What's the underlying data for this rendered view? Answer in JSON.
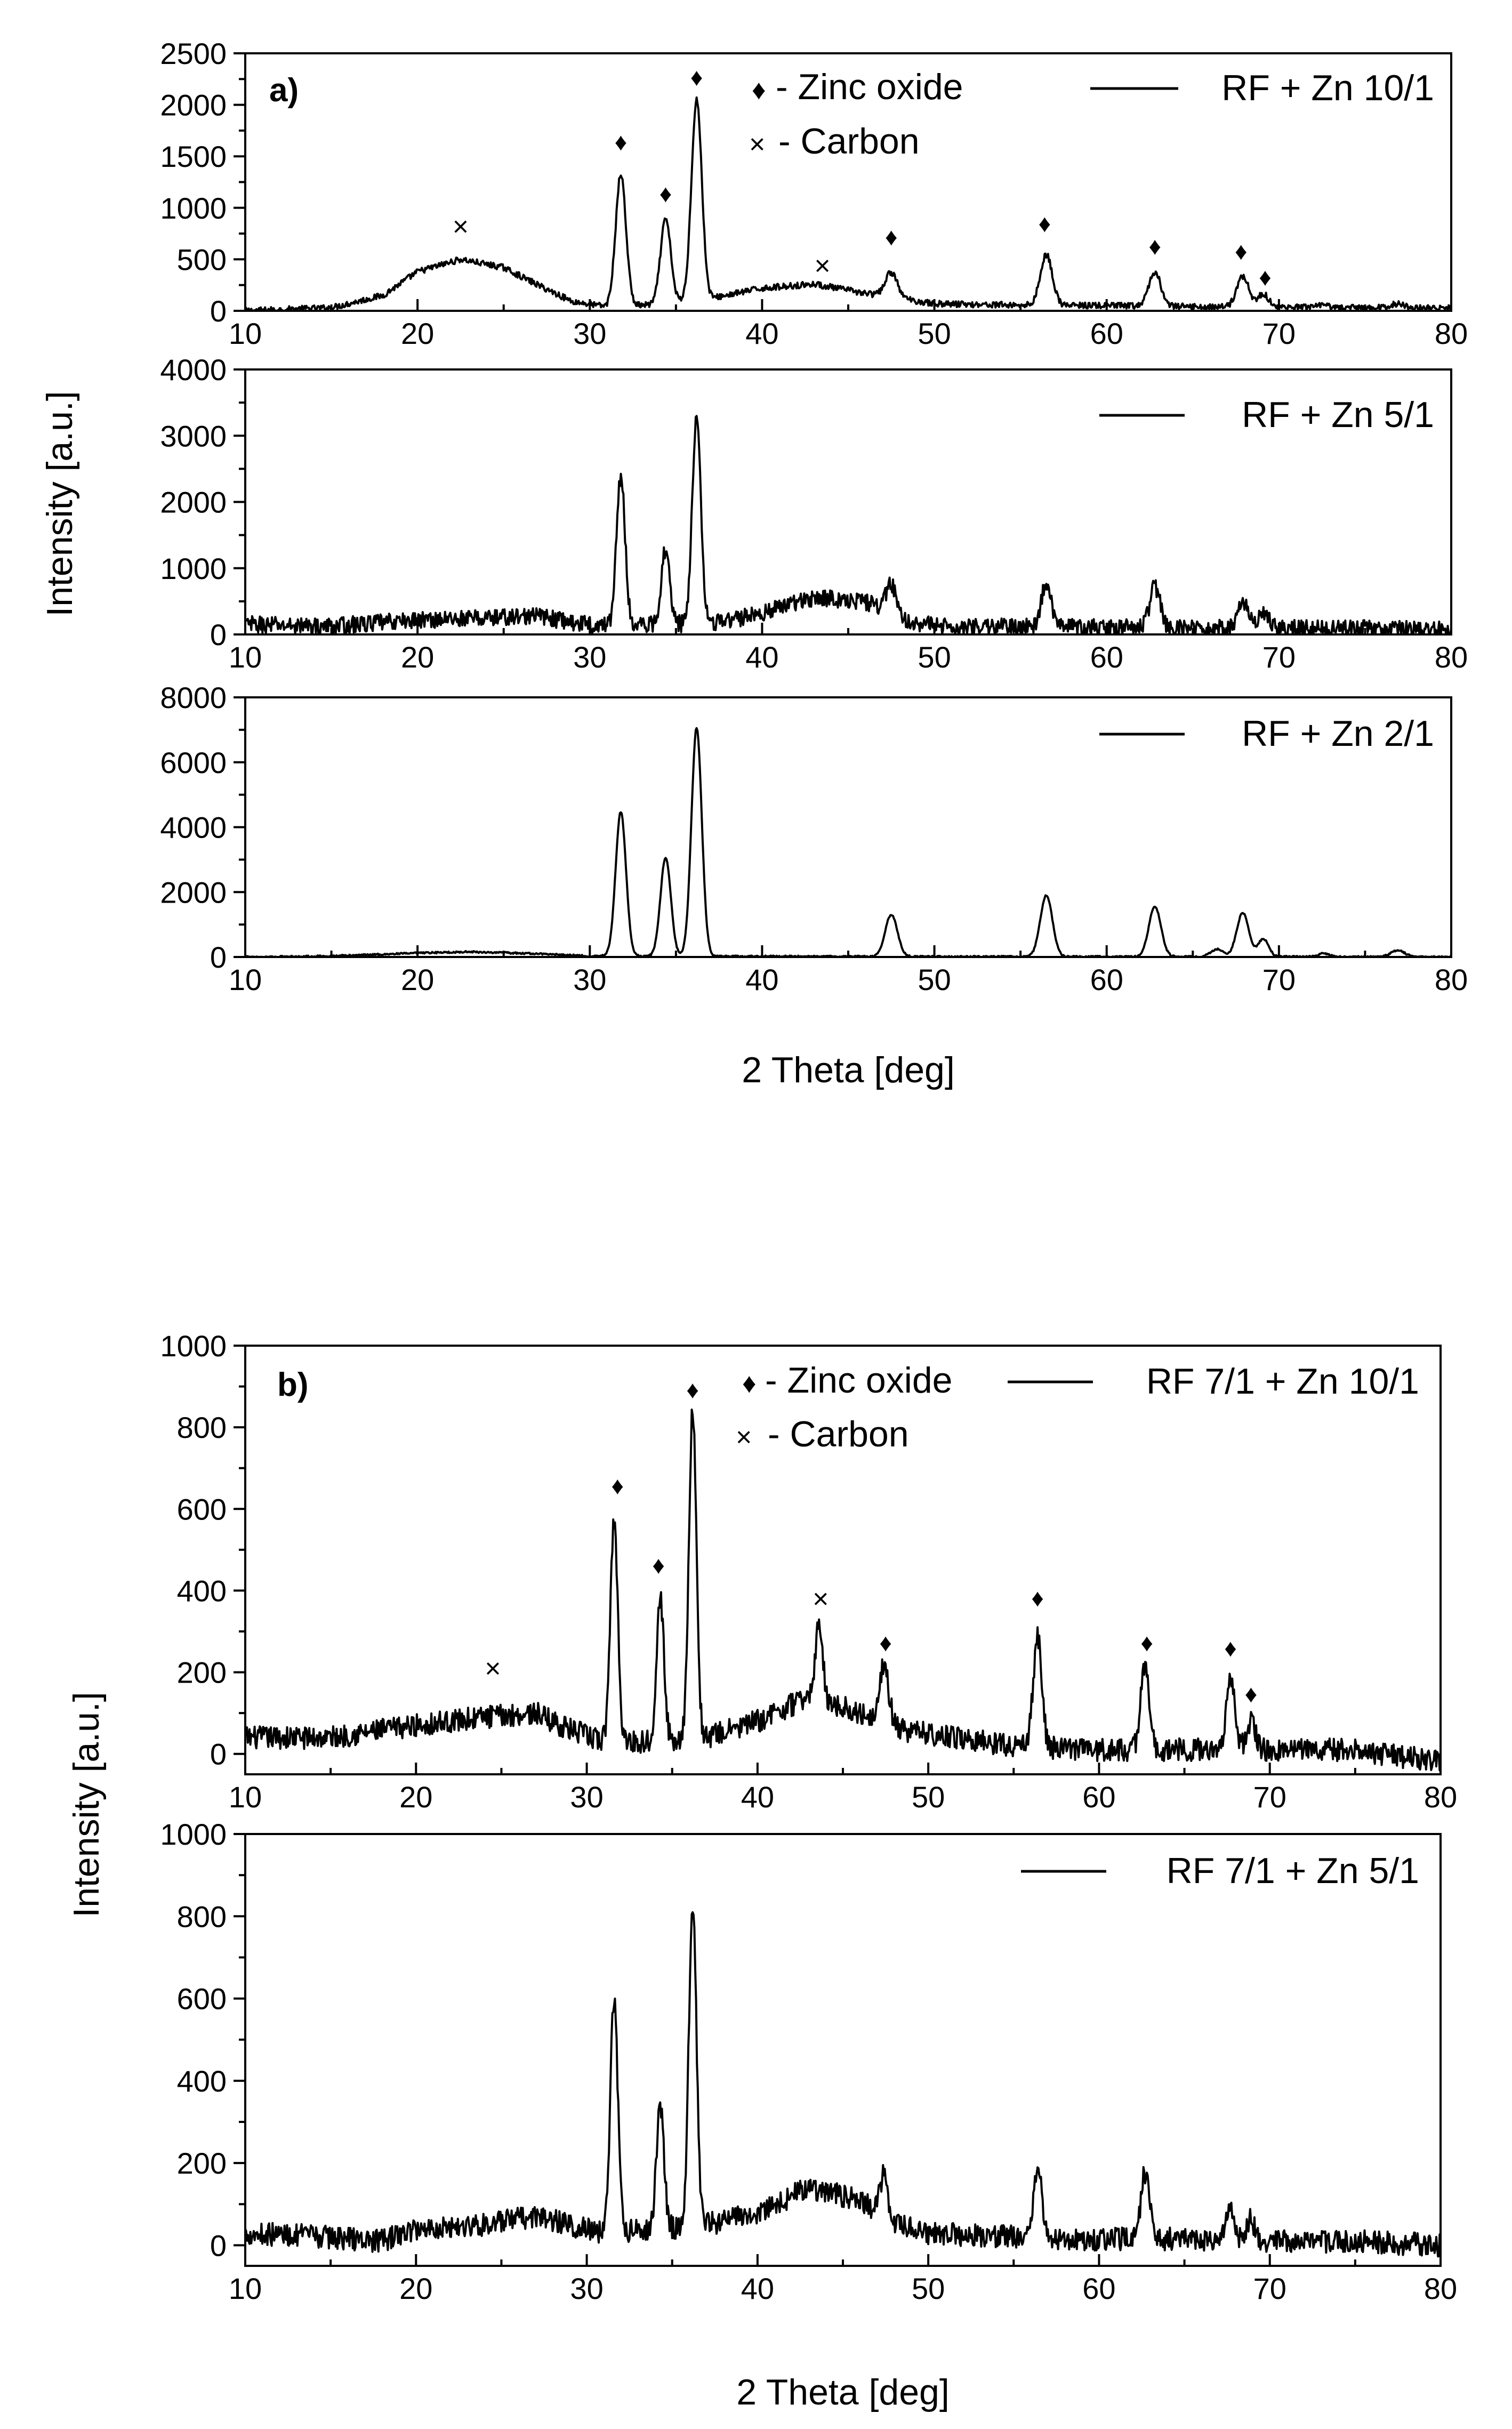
{
  "chart_data": [
    {
      "panel_label": "a)",
      "type": "line",
      "xlabel": "2 Theta [deg]",
      "ylabel": "Intensity [a.u.]",
      "xlim": [
        10,
        80
      ],
      "xticks": [
        10,
        20,
        30,
        40,
        50,
        60,
        70,
        80
      ],
      "legend_markers": [
        {
          "symbol": "♦",
          "text": "- Zinc oxide"
        },
        {
          "symbol": "×",
          "text": "- Carbon"
        }
      ],
      "subplots": [
        {
          "name": "RF + Zn 10/1",
          "ylim": [
            0,
            2500
          ],
          "yticks": [
            0,
            500,
            1000,
            1500,
            2000,
            2500
          ],
          "baseline": [
            [
              10,
              0
            ],
            [
              15,
              30
            ],
            [
              18,
              150
            ],
            [
              20,
              380
            ],
            [
              22.5,
              500
            ],
            [
              25,
              420
            ],
            [
              27,
              250
            ],
            [
              29,
              90
            ],
            [
              31,
              40
            ],
            [
              34,
              60
            ],
            [
              37,
              120
            ],
            [
              40,
              220
            ],
            [
              43,
              260
            ],
            [
              46,
              170
            ],
            [
              50,
              70
            ],
            [
              55,
              55
            ],
            [
              60,
              50
            ],
            [
              65,
              40
            ],
            [
              70,
              35
            ],
            [
              75,
              30
            ],
            [
              80,
              25
            ]
          ],
          "peaks": [
            [
              31.8,
              1280,
              0.3
            ],
            [
              34.4,
              820,
              0.3
            ],
            [
              36.2,
              1950,
              0.3
            ],
            [
              47.5,
              240,
              0.35
            ],
            [
              56.5,
              490,
              0.35
            ],
            [
              62.8,
              330,
              0.35
            ],
            [
              67.9,
              300,
              0.35
            ],
            [
              69.1,
              130,
              0.3
            ],
            [
              72.6,
              20,
              0.3
            ],
            [
              76.9,
              40,
              0.4
            ]
          ],
          "noise": 30,
          "markers": [
            {
              "symbol": "×",
              "x": 22.5,
              "y": 820
            },
            {
              "symbol": "♦",
              "x": 31.8,
              "y": 1650
            },
            {
              "symbol": "♦",
              "x": 34.4,
              "y": 1150
            },
            {
              "symbol": "♦",
              "x": 36.2,
              "y": 2280
            },
            {
              "symbol": "×",
              "x": 43.5,
              "y": 440
            },
            {
              "symbol": "♦",
              "x": 47.5,
              "y": 730
            },
            {
              "symbol": "♦",
              "x": 56.4,
              "y": 860
            },
            {
              "symbol": "♦",
              "x": 62.8,
              "y": 640
            },
            {
              "symbol": "♦",
              "x": 67.8,
              "y": 590
            },
            {
              "symbol": "♦",
              "x": 69.2,
              "y": 340
            }
          ]
        },
        {
          "name": "RF + Zn 5/1",
          "ylim": [
            0,
            4000
          ],
          "yticks": [
            0,
            1000,
            2000,
            3000,
            4000
          ],
          "baseline": [
            [
              10,
              150
            ],
            [
              15,
              120
            ],
            [
              20,
              220
            ],
            [
              25,
              260
            ],
            [
              27,
              280
            ],
            [
              29,
              180
            ],
            [
              31,
              130
            ],
            [
              35,
              150
            ],
            [
              38,
              200
            ],
            [
              40,
              330
            ],
            [
              43,
              560
            ],
            [
              46,
              500
            ],
            [
              48,
              250
            ],
            [
              50,
              120
            ],
            [
              55,
              110
            ],
            [
              60,
              100
            ],
            [
              65,
              95
            ],
            [
              70,
              90
            ],
            [
              75,
              90
            ],
            [
              80,
              70
            ]
          ],
          "peaks": [
            [
              31.8,
              2250,
              0.25
            ],
            [
              34.4,
              1150,
              0.25
            ],
            [
              36.2,
              3150,
              0.25
            ],
            [
              47.5,
              450,
              0.3
            ],
            [
              56.5,
              650,
              0.3
            ],
            [
              62.8,
              620,
              0.3
            ],
            [
              67.9,
              400,
              0.3
            ],
            [
              69.1,
              250,
              0.3
            ]
          ],
          "noise": 130,
          "markers": []
        },
        {
          "name": "RF + Zn 2/1",
          "ylim": [
            0,
            8000
          ],
          "yticks": [
            0,
            2000,
            4000,
            6000,
            8000
          ],
          "baseline": [
            [
              10,
              0
            ],
            [
              15,
              30
            ],
            [
              20,
              120
            ],
            [
              23,
              160
            ],
            [
              27,
              100
            ],
            [
              30,
              30
            ],
            [
              40,
              20
            ],
            [
              50,
              10
            ],
            [
              60,
              10
            ],
            [
              70,
              10
            ],
            [
              80,
              0
            ]
          ],
          "peaks": [
            [
              31.8,
              4450,
              0.3
            ],
            [
              34.4,
              3050,
              0.3
            ],
            [
              36.2,
              7050,
              0.3
            ],
            [
              47.5,
              1300,
              0.35
            ],
            [
              56.5,
              1900,
              0.35
            ],
            [
              62.8,
              1550,
              0.35
            ],
            [
              66.4,
              230,
              0.35
            ],
            [
              67.9,
              1350,
              0.35
            ],
            [
              69.1,
              550,
              0.3
            ],
            [
              72.6,
              100,
              0.3
            ],
            [
              76.9,
              200,
              0.4
            ]
          ],
          "noise": 25,
          "markers": []
        }
      ]
    },
    {
      "panel_label": "b)",
      "type": "line",
      "xlabel": "2 Theta [deg]",
      "ylabel": "Intensity [a.u.]",
      "xlim": [
        10,
        80
      ],
      "xticks": [
        10,
        20,
        30,
        40,
        50,
        60,
        70,
        80
      ],
      "legend_markers": [
        {
          "symbol": "♦",
          "text": "- Zinc oxide"
        },
        {
          "symbol": "×",
          "text": "- Carbon"
        }
      ],
      "subplots": [
        {
          "name": "RF 7/1 + Zn 10/1",
          "ylim": [
            -50,
            1000
          ],
          "yticks": [
            0,
            200,
            400,
            600,
            800,
            1000
          ],
          "baseline": [
            [
              10,
              40
            ],
            [
              15,
              40
            ],
            [
              20,
              70
            ],
            [
              24,
              90
            ],
            [
              27,
              100
            ],
            [
              29,
              60
            ],
            [
              31,
              30
            ],
            [
              34,
              30
            ],
            [
              37,
              40
            ],
            [
              40,
              80
            ],
            [
              43,
              140
            ],
            [
              46,
              100
            ],
            [
              48,
              60
            ],
            [
              50,
              50
            ],
            [
              55,
              20
            ],
            [
              60,
              10
            ],
            [
              65,
              10
            ],
            [
              70,
              10
            ],
            [
              75,
              10
            ],
            [
              80,
              -20
            ]
          ],
          "peaks": [
            [
              31.6,
              540,
              0.22
            ],
            [
              34.3,
              350,
              0.22
            ],
            [
              36.2,
              800,
              0.22
            ],
            [
              43.6,
              180,
              0.22
            ],
            [
              47.4,
              140,
              0.3
            ],
            [
              56.4,
              270,
              0.25
            ],
            [
              62.7,
              210,
              0.25
            ],
            [
              67.7,
              180,
              0.25
            ],
            [
              68.9,
              70,
              0.25
            ]
          ],
          "noise": 28,
          "markers": [
            {
              "symbol": "×",
              "x": 24.5,
              "y": 210
            },
            {
              "symbol": "♦",
              "x": 31.8,
              "y": 660
            },
            {
              "symbol": "♦",
              "x": 34.2,
              "y": 465
            },
            {
              "symbol": "♦",
              "x": 36.2,
              "y": 895
            },
            {
              "symbol": "×",
              "x": 43.7,
              "y": 380
            },
            {
              "symbol": "♦",
              "x": 47.5,
              "y": 275
            },
            {
              "symbol": "♦",
              "x": 56.4,
              "y": 385
            },
            {
              "symbol": "♦",
              "x": 62.8,
              "y": 275
            },
            {
              "symbol": "♦",
              "x": 67.7,
              "y": 262
            },
            {
              "symbol": "♦",
              "x": 68.9,
              "y": 150
            }
          ]
        },
        {
          "name": "RF 7/1 + Zn 5/1",
          "ylim": [
            -50,
            1000
          ],
          "yticks": [
            0,
            200,
            400,
            600,
            800,
            1000
          ],
          "baseline": [
            [
              10,
              30
            ],
            [
              15,
              20
            ],
            [
              18,
              10
            ],
            [
              20,
              40
            ],
            [
              24,
              50
            ],
            [
              27,
              70
            ],
            [
              29,
              50
            ],
            [
              31,
              30
            ],
            [
              34,
              40
            ],
            [
              37,
              50
            ],
            [
              40,
              80
            ],
            [
              43,
              140
            ],
            [
              46,
              110
            ],
            [
              48,
              50
            ],
            [
              50,
              30
            ],
            [
              55,
              20
            ],
            [
              60,
              15
            ],
            [
              65,
              15
            ],
            [
              70,
              10
            ],
            [
              75,
              10
            ],
            [
              80,
              0
            ]
          ],
          "peaks": [
            [
              31.6,
              560,
              0.22
            ],
            [
              34.3,
              300,
              0.22
            ],
            [
              36.2,
              790,
              0.22
            ],
            [
              47.4,
              100,
              0.25
            ],
            [
              56.4,
              170,
              0.25
            ],
            [
              62.7,
              160,
              0.25
            ],
            [
              67.7,
              80,
              0.25
            ],
            [
              68.9,
              50,
              0.25
            ]
          ],
          "noise": 28,
          "markers": []
        }
      ]
    }
  ]
}
